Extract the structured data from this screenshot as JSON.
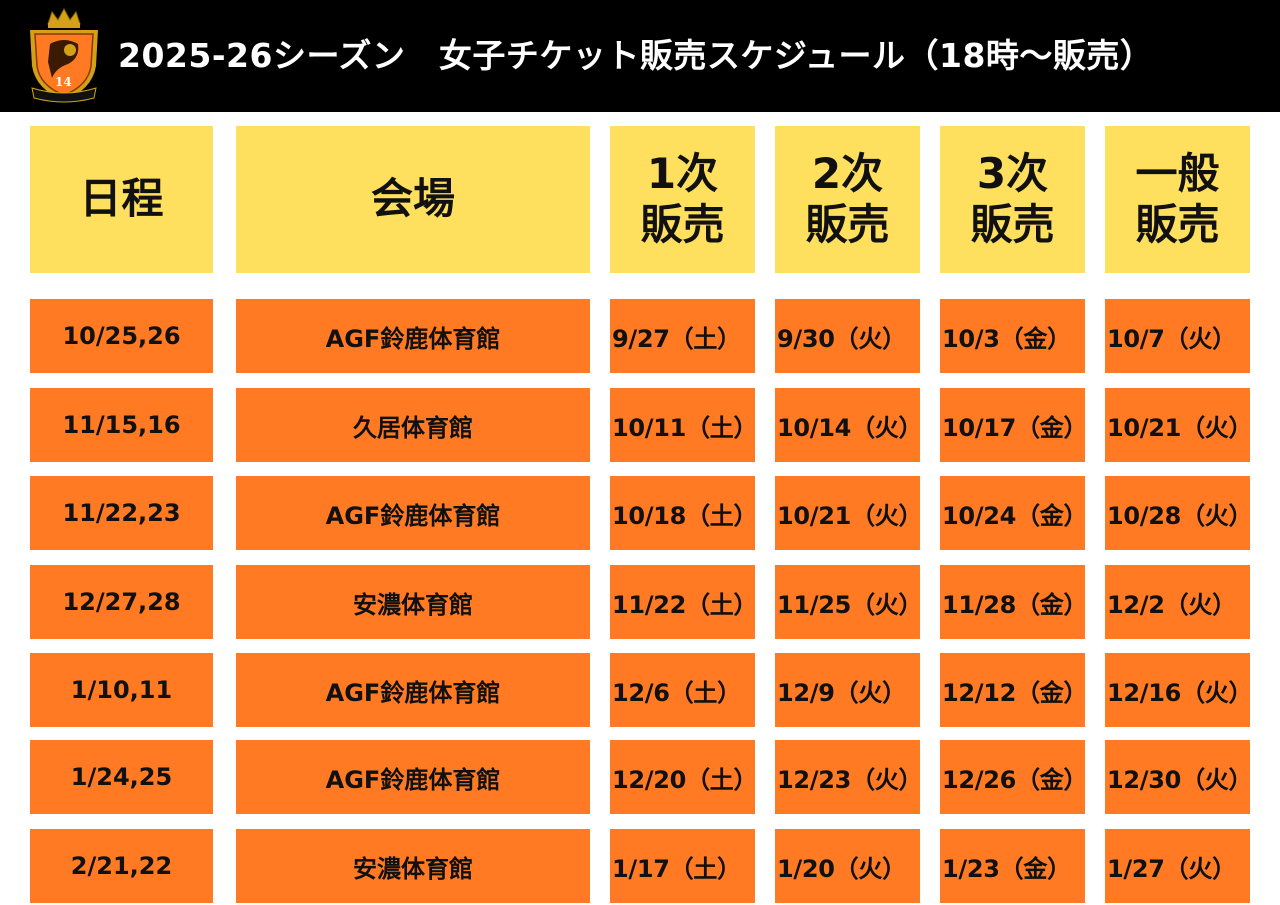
{
  "header": {
    "title": "2025-26シーズン　女子チケット販売スケジュール（18時〜販売）",
    "logo": {
      "icon": "team-crest-icon",
      "primary_color": "#ff7a22",
      "secondary_color": "#d4a017"
    }
  },
  "colors": {
    "header_bg": "#000000",
    "column_header_bg": "#ffdf5e",
    "row_bg": "#ff7a22"
  },
  "table": {
    "columns": [
      {
        "line1": "日程",
        "line2": ""
      },
      {
        "line1": "会場",
        "line2": ""
      },
      {
        "line1": "1次",
        "line2": "販売"
      },
      {
        "line1": "2次",
        "line2": "販売"
      },
      {
        "line1": "3次",
        "line2": "販売"
      },
      {
        "line1": "一般",
        "line2": "販売"
      }
    ],
    "rows": [
      {
        "date": "10/25,26",
        "venue": "AGF鈴鹿体育館",
        "sale1": "9/27（土）",
        "sale2": "9/30（火）",
        "sale3": "10/3（金）",
        "general": "10/7（火）"
      },
      {
        "date": "11/15,16",
        "venue": "久居体育館",
        "sale1": "10/11（土）",
        "sale2": "10/14（火）",
        "sale3": "10/17（金）",
        "general": "10/21（火）"
      },
      {
        "date": "11/22,23",
        "venue": "AGF鈴鹿体育館",
        "sale1": "10/18（土）",
        "sale2": "10/21（火）",
        "sale3": "10/24（金）",
        "general": "10/28（火）"
      },
      {
        "date": "12/27,28",
        "venue": "安濃体育館",
        "sale1": "11/22（土）",
        "sale2": "11/25（火）",
        "sale3": "11/28（金）",
        "general": "12/2（火）"
      },
      {
        "date": "1/10,11",
        "venue": "AGF鈴鹿体育館",
        "sale1": "12/6（土）",
        "sale2": "12/9（火）",
        "sale3": "12/12（金）",
        "general": "12/16（火）"
      },
      {
        "date": "1/24,25",
        "venue": "AGF鈴鹿体育館",
        "sale1": "12/20（土）",
        "sale2": "12/23（火）",
        "sale3": "12/26（金）",
        "general": "12/30（火）"
      },
      {
        "date": "2/21,22",
        "venue": "安濃体育館",
        "sale1": "1/17（土）",
        "sale2": "1/20（火）",
        "sale3": "1/23（金）",
        "general": "1/27（火）"
      }
    ]
  }
}
